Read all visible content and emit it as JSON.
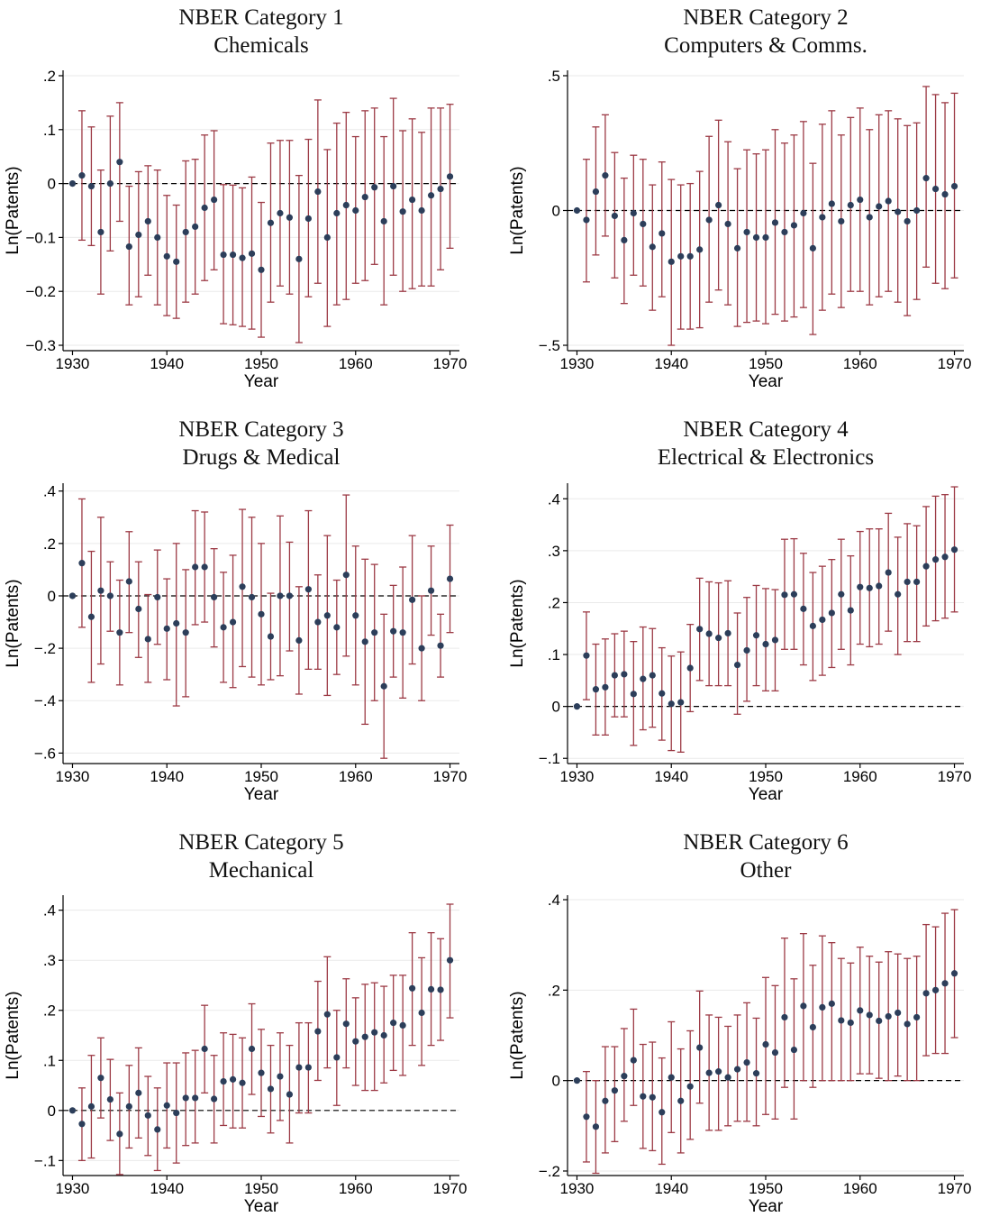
{
  "chart_data": [
    {
      "type": "scatter",
      "title": "NBER Category 1",
      "subtitle": "Chemicals",
      "xlabel": "Year",
      "ylabel": "Ln(Patents)",
      "xlim": [
        1929,
        1971
      ],
      "ylim": [
        -0.31,
        0.21
      ],
      "xticks": [
        1930,
        1940,
        1950,
        1960,
        1970
      ],
      "yticks": [
        -0.3,
        -0.2,
        -0.1,
        0,
        0.1,
        0.2
      ],
      "ytick_labels": [
        "−0.3",
        "−0.2",
        "−0.1",
        "0",
        ".1",
        ".2"
      ],
      "x": [
        1930,
        1931,
        1932,
        1933,
        1934,
        1935,
        1936,
        1937,
        1938,
        1939,
        1940,
        1941,
        1942,
        1943,
        1944,
        1945,
        1946,
        1947,
        1948,
        1949,
        1950,
        1951,
        1952,
        1953,
        1954,
        1955,
        1956,
        1957,
        1958,
        1959,
        1960,
        1961,
        1962,
        1963,
        1964,
        1965,
        1966,
        1967,
        1968,
        1969,
        1970
      ],
      "y": [
        0,
        0.015,
        -0.005,
        -0.09,
        0,
        0.04,
        -0.117,
        -0.095,
        -0.07,
        -0.1,
        -0.135,
        -0.145,
        -0.09,
        -0.08,
        -0.045,
        -0.03,
        -0.132,
        -0.132,
        -0.138,
        -0.13,
        -0.16,
        -0.073,
        -0.055,
        -0.063,
        -0.14,
        -0.065,
        -0.015,
        -0.1,
        -0.055,
        -0.04,
        -0.05,
        -0.025,
        -0.007,
        -0.07,
        -0.005,
        -0.052,
        -0.03,
        -0.05,
        -0.022,
        -0.01,
        0.013
      ],
      "ci_low": [
        null,
        -0.105,
        -0.115,
        -0.205,
        -0.125,
        -0.07,
        -0.225,
        -0.21,
        -0.17,
        -0.225,
        -0.245,
        -0.25,
        -0.22,
        -0.205,
        -0.18,
        -0.16,
        -0.26,
        -0.262,
        -0.265,
        -0.27,
        -0.285,
        -0.22,
        -0.19,
        -0.205,
        -0.295,
        -0.21,
        -0.185,
        -0.265,
        -0.225,
        -0.215,
        -0.185,
        -0.18,
        -0.15,
        -0.225,
        -0.17,
        -0.2,
        -0.195,
        -0.19,
        -0.19,
        -0.16,
        -0.12
      ],
      "ci_high": [
        null,
        0.135,
        0.105,
        0.025,
        0.125,
        0.15,
        -0.005,
        0.022,
        0.033,
        0.025,
        -0.022,
        -0.04,
        0.042,
        0.045,
        0.09,
        0.098,
        -0.002,
        -0.003,
        -0.008,
        0.012,
        -0.035,
        0.075,
        0.08,
        0.08,
        0.015,
        0.082,
        0.155,
        0.063,
        0.112,
        0.132,
        0.087,
        0.135,
        0.14,
        0.087,
        0.158,
        0.098,
        0.12,
        0.095,
        0.14,
        0.14,
        0.147
      ],
      "grid": true
    },
    {
      "type": "scatter",
      "title": "NBER Category 2",
      "subtitle": "Computers & Comms.",
      "xlabel": "Year",
      "ylabel": "Ln(Patents)",
      "xlim": [
        1929,
        1971
      ],
      "ylim": [
        -0.52,
        0.52
      ],
      "xticks": [
        1930,
        1940,
        1950,
        1960,
        1970
      ],
      "yticks": [
        -0.5,
        0,
        0.5
      ],
      "ytick_labels": [
        "−.5",
        "0",
        ".5"
      ],
      "x": [
        1930,
        1931,
        1932,
        1933,
        1934,
        1935,
        1936,
        1937,
        1938,
        1939,
        1940,
        1941,
        1942,
        1943,
        1944,
        1945,
        1946,
        1947,
        1948,
        1949,
        1950,
        1951,
        1952,
        1953,
        1954,
        1955,
        1956,
        1957,
        1958,
        1959,
        1960,
        1961,
        1962,
        1963,
        1964,
        1965,
        1966,
        1967,
        1968,
        1969,
        1970
      ],
      "y": [
        0,
        -0.035,
        0.07,
        0.13,
        -0.02,
        -0.11,
        -0.01,
        -0.05,
        -0.135,
        -0.085,
        -0.19,
        -0.17,
        -0.17,
        -0.145,
        -0.035,
        0.02,
        -0.05,
        -0.14,
        -0.08,
        -0.1,
        -0.1,
        -0.045,
        -0.08,
        -0.055,
        -0.01,
        -0.14,
        -0.025,
        0.025,
        -0.04,
        0.02,
        0.04,
        -0.025,
        0.015,
        0.035,
        -0.005,
        -0.04,
        0,
        0.12,
        0.08,
        0.06,
        0.09
      ],
      "ci_low": [
        null,
        -0.265,
        -0.165,
        -0.095,
        -0.25,
        -0.345,
        -0.24,
        -0.28,
        -0.37,
        -0.32,
        -0.5,
        -0.44,
        -0.44,
        -0.435,
        -0.34,
        -0.295,
        -0.35,
        -0.43,
        -0.415,
        -0.41,
        -0.42,
        -0.385,
        -0.41,
        -0.395,
        -0.36,
        -0.46,
        -0.37,
        -0.31,
        -0.36,
        -0.3,
        -0.3,
        -0.35,
        -0.32,
        -0.3,
        -0.34,
        -0.39,
        -0.33,
        -0.21,
        -0.27,
        -0.29,
        -0.25
      ],
      "ci_high": [
        null,
        0.19,
        0.31,
        0.355,
        0.215,
        0.12,
        0.205,
        0.19,
        0.095,
        0.18,
        0.115,
        0.095,
        0.1,
        0.145,
        0.275,
        0.335,
        0.255,
        0.155,
        0.225,
        0.21,
        0.225,
        0.3,
        0.25,
        0.28,
        0.33,
        0.175,
        0.32,
        0.37,
        0.28,
        0.345,
        0.38,
        0.3,
        0.355,
        0.37,
        0.34,
        0.315,
        0.325,
        0.46,
        0.43,
        0.4,
        0.435
      ],
      "grid": true
    },
    {
      "type": "scatter",
      "title": "NBER Category 3",
      "subtitle": "Drugs & Medical",
      "xlabel": "Year",
      "ylabel": "Ln(Patents)",
      "xlim": [
        1929,
        1971
      ],
      "ylim": [
        -0.64,
        0.43
      ],
      "xticks": [
        1930,
        1940,
        1950,
        1960,
        1970
      ],
      "yticks": [
        -0.6,
        -0.4,
        -0.2,
        0,
        0.2,
        0.4
      ],
      "ytick_labels": [
        "−.6",
        "−.4",
        "−.2",
        "0",
        ".2",
        ".4"
      ],
      "x": [
        1930,
        1931,
        1932,
        1933,
        1934,
        1935,
        1936,
        1937,
        1938,
        1939,
        1940,
        1941,
        1942,
        1943,
        1944,
        1945,
        1946,
        1947,
        1948,
        1949,
        1950,
        1951,
        1952,
        1953,
        1954,
        1955,
        1956,
        1957,
        1958,
        1959,
        1960,
        1961,
        1962,
        1963,
        1964,
        1965,
        1966,
        1967,
        1968,
        1969,
        1970
      ],
      "y": [
        0,
        0.125,
        -0.08,
        0.02,
        0,
        -0.14,
        0.055,
        -0.05,
        -0.165,
        -0.005,
        -0.125,
        -0.105,
        -0.14,
        0.11,
        0.11,
        -0.005,
        -0.12,
        -0.1,
        0.035,
        -0.005,
        -0.07,
        -0.155,
        0,
        0,
        -0.17,
        0.025,
        -0.1,
        -0.075,
        -0.12,
        0.08,
        -0.075,
        -0.175,
        -0.14,
        -0.345,
        -0.135,
        -0.14,
        -0.015,
        -0.2,
        0.02,
        -0.19,
        0.065
      ],
      "ci_low": [
        null,
        -0.12,
        -0.33,
        -0.26,
        -0.135,
        -0.34,
        -0.14,
        -0.235,
        -0.33,
        -0.185,
        -0.32,
        -0.42,
        -0.385,
        -0.11,
        -0.1,
        -0.195,
        -0.33,
        -0.35,
        -0.27,
        -0.31,
        -0.34,
        -0.32,
        -0.305,
        -0.21,
        -0.375,
        -0.28,
        -0.28,
        -0.38,
        -0.3,
        -0.23,
        -0.34,
        -0.49,
        -0.4,
        -0.62,
        -0.31,
        -0.39,
        -0.26,
        -0.4,
        -0.15,
        -0.31,
        -0.14
      ],
      "ci_high": [
        null,
        0.37,
        0.17,
        0.3,
        0.13,
        0.06,
        0.245,
        0.13,
        0.005,
        0.175,
        0.065,
        0.2,
        0.1,
        0.325,
        0.32,
        0.18,
        0.09,
        0.155,
        0.33,
        0.3,
        0.2,
        0.01,
        0.305,
        0.205,
        0.035,
        0.325,
        0.08,
        0.23,
        0.06,
        0.385,
        0.19,
        0.14,
        0.12,
        -0.07,
        0.04,
        0.11,
        0.23,
        0.0,
        0.19,
        -0.07,
        0.27
      ],
      "grid": true
    },
    {
      "type": "scatter",
      "title": "NBER Category 4",
      "subtitle": "Electrical & Electronics",
      "xlabel": "Year",
      "ylabel": "Ln(Patents)",
      "xlim": [
        1929,
        1971
      ],
      "ylim": [
        -0.11,
        0.43
      ],
      "xticks": [
        1930,
        1940,
        1950,
        1960,
        1970
      ],
      "yticks": [
        -0.1,
        0,
        0.1,
        0.2,
        0.3,
        0.4
      ],
      "ytick_labels": [
        "−.1",
        "0",
        ".1",
        ".2",
        ".3",
        ".4"
      ],
      "x": [
        1930,
        1931,
        1932,
        1933,
        1934,
        1935,
        1936,
        1937,
        1938,
        1939,
        1940,
        1941,
        1942,
        1943,
        1944,
        1945,
        1946,
        1947,
        1948,
        1949,
        1950,
        1951,
        1952,
        1953,
        1954,
        1955,
        1956,
        1957,
        1958,
        1959,
        1960,
        1961,
        1962,
        1963,
        1964,
        1965,
        1966,
        1967,
        1968,
        1969,
        1970
      ],
      "y": [
        0,
        0.098,
        0.033,
        0.037,
        0.06,
        0.062,
        0.024,
        0.053,
        0.06,
        0.025,
        0.005,
        0.008,
        0.074,
        0.149,
        0.14,
        0.132,
        0.141,
        0.08,
        0.108,
        0.137,
        0.12,
        0.128,
        0.215,
        0.216,
        0.188,
        0.155,
        0.167,
        0.18,
        0.216,
        0.185,
        0.23,
        0.228,
        0.232,
        0.258,
        0.216,
        0.24,
        0.24,
        0.27,
        0.283,
        0.288,
        0.302
      ],
      "ci_low": [
        null,
        0.013,
        -0.055,
        -0.055,
        -0.02,
        -0.02,
        -0.075,
        -0.045,
        -0.04,
        -0.065,
        -0.085,
        -0.088,
        -0.01,
        0.05,
        0.04,
        0.04,
        0.04,
        -0.015,
        0.01,
        0.04,
        0.03,
        0.03,
        0.11,
        0.11,
        0.08,
        0.05,
        0.06,
        0.075,
        0.11,
        0.08,
        0.12,
        0.115,
        0.12,
        0.145,
        0.1,
        0.125,
        0.125,
        0.155,
        0.165,
        0.17,
        0.182
      ],
      "ci_high": [
        null,
        0.182,
        0.12,
        0.13,
        0.14,
        0.145,
        0.125,
        0.153,
        0.15,
        0.113,
        0.097,
        0.105,
        0.158,
        0.247,
        0.24,
        0.238,
        0.242,
        0.18,
        0.21,
        0.233,
        0.227,
        0.225,
        0.322,
        0.323,
        0.295,
        0.258,
        0.27,
        0.283,
        0.322,
        0.29,
        0.337,
        0.342,
        0.342,
        0.372,
        0.326,
        0.352,
        0.348,
        0.385,
        0.405,
        0.408,
        0.423
      ],
      "grid": true
    },
    {
      "type": "scatter",
      "title": "NBER Category 5",
      "subtitle": "Mechanical",
      "xlabel": "Year",
      "ylabel": "Ln(Patents)",
      "xlim": [
        1929,
        1971
      ],
      "ylim": [
        -0.13,
        0.43
      ],
      "xticks": [
        1930,
        1940,
        1950,
        1960,
        1970
      ],
      "yticks": [
        -0.1,
        0,
        0.1,
        0.2,
        0.3,
        0.4
      ],
      "ytick_labels": [
        "−.1",
        "0",
        ".1",
        ".2",
        ".3",
        ".4"
      ],
      "x": [
        1930,
        1931,
        1932,
        1933,
        1934,
        1935,
        1936,
        1937,
        1938,
        1939,
        1940,
        1941,
        1942,
        1943,
        1944,
        1945,
        1946,
        1947,
        1948,
        1949,
        1950,
        1951,
        1952,
        1953,
        1954,
        1955,
        1956,
        1957,
        1958,
        1959,
        1960,
        1961,
        1962,
        1963,
        1964,
        1965,
        1966,
        1967,
        1968,
        1969,
        1970
      ],
      "y": [
        0,
        -0.027,
        0.008,
        0.065,
        0.022,
        -0.047,
        0.008,
        0.035,
        -0.01,
        -0.038,
        0.01,
        -0.005,
        0.025,
        0.025,
        0.123,
        0.023,
        0.058,
        0.062,
        0.055,
        0.123,
        0.075,
        0.043,
        0.068,
        0.032,
        0.086,
        0.086,
        0.158,
        0.192,
        0.106,
        0.173,
        0.138,
        0.147,
        0.156,
        0.15,
        0.175,
        0.17,
        0.244,
        0.195,
        0.242,
        0.241,
        0.3
      ],
      "ci_low": [
        null,
        -0.1,
        -0.095,
        -0.015,
        -0.06,
        -0.128,
        -0.075,
        -0.055,
        -0.09,
        -0.12,
        -0.075,
        -0.105,
        -0.07,
        -0.065,
        0.035,
        -0.065,
        -0.03,
        -0.035,
        -0.035,
        0.032,
        -0.012,
        -0.045,
        -0.02,
        -0.065,
        -0.005,
        -0.005,
        0.06,
        0.085,
        0.01,
        0.085,
        0.05,
        0.04,
        0.04,
        0.055,
        0.08,
        0.07,
        0.13,
        0.09,
        0.13,
        0.14,
        0.185
      ],
      "ci_high": [
        null,
        0.045,
        0.11,
        0.145,
        0.102,
        0.035,
        0.09,
        0.125,
        0.068,
        0.045,
        0.095,
        0.095,
        0.115,
        0.12,
        0.21,
        0.11,
        0.155,
        0.152,
        0.145,
        0.213,
        0.162,
        0.13,
        0.155,
        0.13,
        0.175,
        0.175,
        0.258,
        0.307,
        0.2,
        0.263,
        0.225,
        0.252,
        0.255,
        0.248,
        0.27,
        0.27,
        0.355,
        0.305,
        0.355,
        0.343,
        0.412
      ],
      "grid": true
    },
    {
      "type": "scatter",
      "title": "NBER Category 6",
      "subtitle": "Other",
      "xlabel": "Year",
      "ylabel": "Ln(Patents)",
      "xlim": [
        1929,
        1971
      ],
      "ylim": [
        -0.21,
        0.41
      ],
      "xticks": [
        1930,
        1940,
        1950,
        1960,
        1970
      ],
      "yticks": [
        -0.2,
        0,
        0.2,
        0.4
      ],
      "ytick_labels": [
        "−.2",
        "0",
        ".2",
        ".4"
      ],
      "x": [
        1930,
        1931,
        1932,
        1933,
        1934,
        1935,
        1936,
        1937,
        1938,
        1939,
        1940,
        1941,
        1942,
        1943,
        1944,
        1945,
        1946,
        1947,
        1948,
        1949,
        1950,
        1951,
        1952,
        1953,
        1954,
        1955,
        1956,
        1957,
        1958,
        1959,
        1960,
        1961,
        1962,
        1963,
        1964,
        1965,
        1966,
        1967,
        1968,
        1969,
        1970
      ],
      "y": [
        0,
        -0.08,
        -0.102,
        -0.045,
        -0.022,
        0.01,
        0.045,
        -0.035,
        -0.037,
        -0.07,
        0.007,
        -0.045,
        -0.013,
        0.073,
        0.017,
        0.02,
        0.007,
        0.025,
        0.04,
        0.016,
        0.08,
        0.062,
        0.14,
        0.068,
        0.165,
        0.118,
        0.162,
        0.17,
        0.133,
        0.128,
        0.155,
        0.145,
        0.132,
        0.142,
        0.15,
        0.125,
        0.14,
        0.193,
        0.2,
        0.215,
        0.237
      ],
      "ci_low": [
        null,
        -0.18,
        -0.205,
        -0.16,
        -0.135,
        -0.09,
        -0.055,
        -0.15,
        -0.155,
        -0.185,
        -0.115,
        -0.16,
        -0.13,
        -0.05,
        -0.11,
        -0.11,
        -0.1,
        -0.09,
        -0.09,
        -0.1,
        -0.075,
        -0.085,
        -0.015,
        -0.085,
        0.0,
        -0.015,
        0.0,
        0.0,
        0.0,
        0.0,
        0.015,
        0.015,
        0.005,
        0.0,
        0.01,
        0.0,
        0.0,
        0.055,
        0.06,
        0.06,
        0.095
      ],
      "ci_high": [
        null,
        0.02,
        0.0,
        0.075,
        0.075,
        0.115,
        0.158,
        0.08,
        0.085,
        0.05,
        0.13,
        0.07,
        0.11,
        0.198,
        0.145,
        0.14,
        0.12,
        0.145,
        0.172,
        0.138,
        0.228,
        0.21,
        0.315,
        0.225,
        0.325,
        0.255,
        0.32,
        0.305,
        0.27,
        0.26,
        0.295,
        0.275,
        0.262,
        0.285,
        0.28,
        0.27,
        0.275,
        0.345,
        0.34,
        0.37,
        0.378
      ],
      "grid": true
    }
  ]
}
